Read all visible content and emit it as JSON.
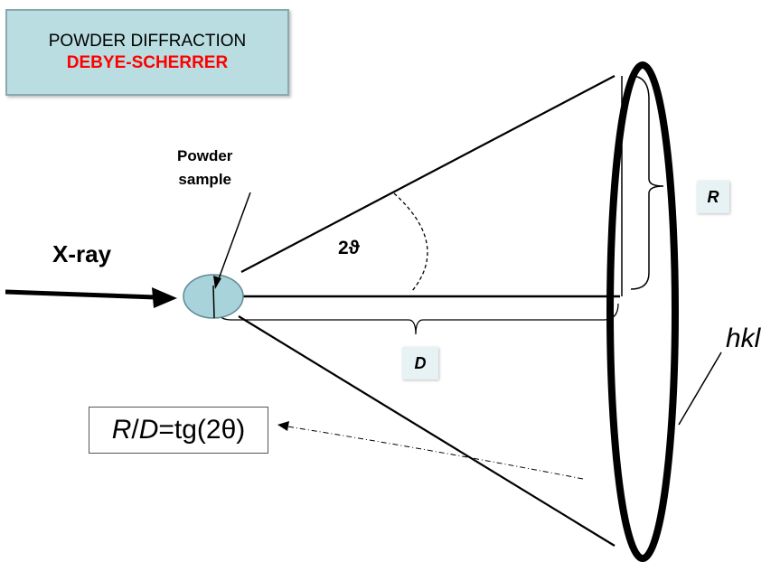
{
  "title": {
    "line1": "POWDER DIFFRACTION",
    "line2": "DEBYE-SCHERRER"
  },
  "labels": {
    "xray": "X-ray",
    "sample_line1": "Powder",
    "sample_line2": "sample",
    "angle": "2ϑ",
    "radius": "R",
    "distance": "D",
    "hkl": "hkl"
  },
  "formula": {
    "r": "R",
    "slash": "/",
    "d": "D",
    "rest": "=tg(2θ)"
  },
  "colors": {
    "title_bg": "#b9dde0",
    "accent_red": "#ff0000",
    "sample_fill": "#a9d3da",
    "tag_bg": "#e6f2f3"
  }
}
